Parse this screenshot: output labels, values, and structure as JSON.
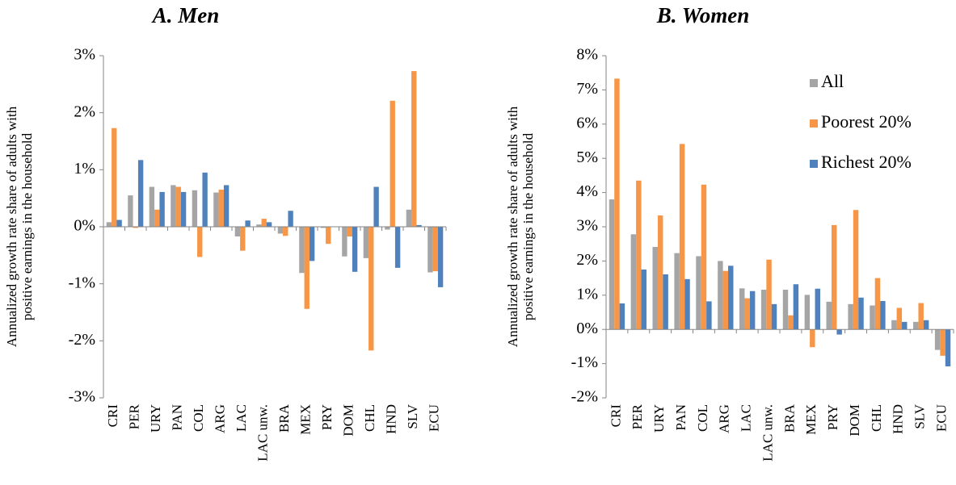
{
  "chart_data": [
    {
      "type": "bar",
      "title": "A.  Men",
      "ylabel": [
        "Annualized growth rate share of adults with",
        "positive earnings in the household"
      ],
      "categories": [
        "CRI",
        "PER",
        "URY",
        "PAN",
        "COL",
        "ARG",
        "LAC",
        "LAC unw.",
        "BRA",
        "MEX",
        "PRY",
        "DOM",
        "CHL",
        "HND",
        "SLV",
        "ECU"
      ],
      "series": [
        {
          "color": "#a5a5a5",
          "values": [
            0.08,
            0.55,
            0.7,
            0.73,
            0.64,
            0.6,
            -0.17,
            0.04,
            -0.12,
            -0.81,
            -0.02,
            -0.52,
            -0.55,
            -0.05,
            0.3,
            -0.8
          ]
        },
        {
          "color": "#f79646",
          "values": [
            1.73,
            -0.02,
            0.3,
            0.7,
            -0.53,
            0.65,
            -0.42,
            0.14,
            -0.16,
            -1.44,
            -0.3,
            -0.17,
            -2.17,
            2.21,
            2.73,
            -0.78
          ]
        },
        {
          "color": "#4f81bd",
          "values": [
            0.12,
            1.17,
            0.61,
            0.61,
            0.95,
            0.73,
            0.11,
            0.08,
            0.28,
            -0.6,
            0.0,
            -0.79,
            0.7,
            -0.72,
            0.03,
            -1.06
          ]
        }
      ],
      "ylim": [
        -3,
        3
      ],
      "yticks": [
        {
          "value": -3,
          "label": "-3%"
        },
        {
          "value": -2,
          "label": "-2%"
        },
        {
          "value": -1,
          "label": "-1%"
        },
        {
          "value": 0,
          "label": "0%"
        },
        {
          "value": 1,
          "label": "1%"
        },
        {
          "value": 2,
          "label": "2%"
        },
        {
          "value": 3,
          "label": "3%"
        }
      ],
      "grid": false
    },
    {
      "type": "bar",
      "title": "B.  Women",
      "ylabel": [
        "Annualized growth rate share of adults with",
        "positive earnings in the household"
      ],
      "categories": [
        "CRI",
        "PER",
        "URY",
        "PAN",
        "COL",
        "ARG",
        "LAC",
        "LAC unw.",
        "BRA",
        "MEX",
        "PRY",
        "DOM",
        "CHL",
        "HND",
        "SLV",
        "ECU"
      ],
      "series": [
        {
          "name": "All",
          "color": "#a5a5a5",
          "values": [
            3.8,
            2.78,
            2.41,
            2.23,
            2.14,
            2.0,
            1.2,
            1.16,
            1.16,
            1.01,
            0.81,
            0.74,
            0.7,
            0.27,
            0.22,
            -0.6
          ]
        },
        {
          "name": "Poorest 20%",
          "color": "#f79646",
          "values": [
            7.33,
            4.35,
            3.33,
            5.42,
            4.23,
            1.71,
            0.91,
            2.04,
            0.41,
            -0.52,
            3.05,
            3.49,
            1.5,
            0.63,
            0.77,
            -0.77
          ]
        },
        {
          "name": "Richest 20%",
          "color": "#4f81bd",
          "values": [
            0.76,
            1.75,
            1.61,
            1.47,
            0.82,
            1.86,
            1.12,
            0.74,
            1.32,
            1.19,
            -0.15,
            0.93,
            0.83,
            0.22,
            0.27,
            -1.08
          ]
        }
      ],
      "ylim": [
        -2,
        8
      ],
      "yticks": [
        {
          "value": -2,
          "label": "-2%"
        },
        {
          "value": -1,
          "label": "-1%"
        },
        {
          "value": 0,
          "label": "0%"
        },
        {
          "value": 1,
          "label": "1%"
        },
        {
          "value": 2,
          "label": "2%"
        },
        {
          "value": 3,
          "label": "3%"
        },
        {
          "value": 4,
          "label": "4%"
        },
        {
          "value": 5,
          "label": "5%"
        },
        {
          "value": 6,
          "label": "6%"
        },
        {
          "value": 7,
          "label": "7%"
        },
        {
          "value": 8,
          "label": "8%"
        }
      ],
      "grid": false,
      "legend": "upper right"
    }
  ]
}
